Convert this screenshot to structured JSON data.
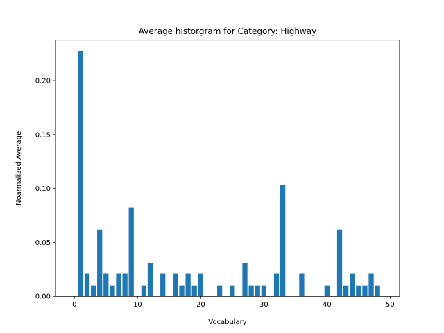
{
  "chart_data": {
    "type": "bar",
    "title": "Average historgram for Category: Highway",
    "xlabel": "Vocabulary",
    "ylabel": "Noarmalized Average",
    "xlim": [
      -3,
      51.5
    ],
    "ylim": [
      0,
      0.2375
    ],
    "xticks": [
      "0",
      "10",
      "20",
      "30",
      "40",
      "50"
    ],
    "yticks": [
      "0.00",
      "0.05",
      "0.10",
      "0.15",
      "0.20"
    ],
    "bar_color": "#1f77b4",
    "grid": false,
    "x": [
      0,
      1,
      2,
      3,
      4,
      5,
      6,
      7,
      8,
      9,
      10,
      11,
      12,
      13,
      14,
      15,
      16,
      17,
      18,
      19,
      20,
      21,
      22,
      23,
      24,
      25,
      26,
      27,
      28,
      29,
      30,
      31,
      32,
      33,
      34,
      35,
      36,
      37,
      38,
      39,
      40,
      41,
      42,
      43,
      44,
      45,
      46,
      47,
      48,
      49
    ],
    "values": [
      0,
      0.227,
      0.021,
      0.01,
      0.062,
      0.021,
      0.01,
      0.021,
      0.021,
      0.082,
      0,
      0.01,
      0.031,
      0,
      0.021,
      0,
      0.021,
      0.01,
      0.021,
      0.01,
      0.021,
      0,
      0,
      0.01,
      0,
      0.01,
      0,
      0.031,
      0.01,
      0.01,
      0.01,
      0,
      0.021,
      0.103,
      0,
      0,
      0.021,
      0,
      0,
      0,
      0.01,
      0,
      0.062,
      0.01,
      0.021,
      0.01,
      0.01,
      0.021,
      0.01,
      0
    ]
  }
}
